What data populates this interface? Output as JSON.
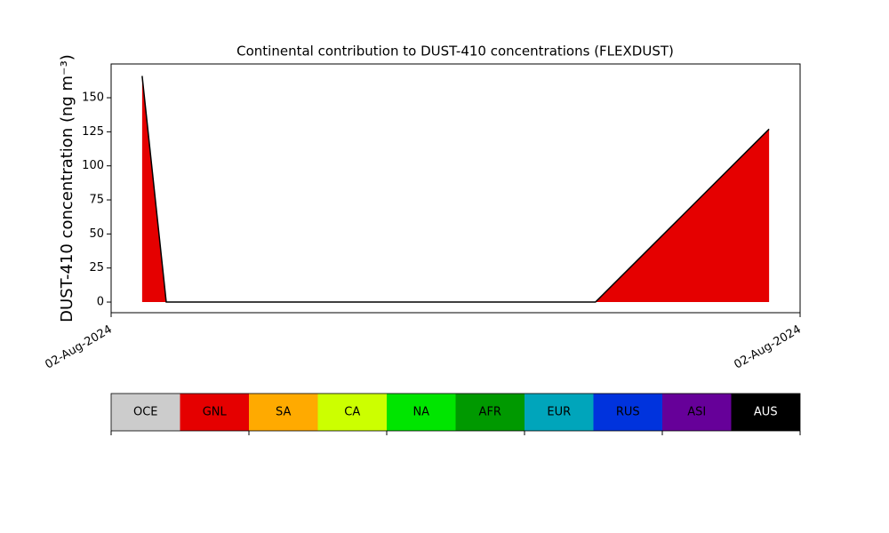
{
  "chart_data": {
    "type": "area",
    "title": "Continental contribution to DUST-410 concentrations (FLEXDUST)",
    "ylabel": "DUST-410 concentration (ng m⁻³)",
    "x": [
      0.045,
      0.08,
      0.684,
      0.703,
      0.955
    ],
    "xlim": [
      0,
      1
    ],
    "xticks": [
      {
        "value": 0,
        "label": "02-Aug-2024"
      },
      {
        "value": 1,
        "label": "02-Aug-2024"
      }
    ],
    "series": [
      {
        "name": "GNL",
        "color": "#e50000",
        "values": [
          166,
          0,
          0,
          0,
          127
        ]
      }
    ],
    "line_color": "#000000",
    "ylim": [
      -7.8,
      174.8
    ],
    "yticks": [
      0,
      25,
      50,
      75,
      100,
      125,
      150
    ],
    "regions": [
      {
        "name": "OCE",
        "color": "#cccccc"
      },
      {
        "name": "GNL",
        "color": "#e50000"
      },
      {
        "name": "SA",
        "color": "#ffaa00"
      },
      {
        "name": "CA",
        "color": "#ccff00"
      },
      {
        "name": "NA",
        "color": "#00e500"
      },
      {
        "name": "AFR",
        "color": "#009900"
      },
      {
        "name": "EUR",
        "color": "#00a5bb"
      },
      {
        "name": "RUS",
        "color": "#0033dd"
      },
      {
        "name": "ASI",
        "color": "#660099"
      },
      {
        "name": "AUS",
        "color": "#000000"
      }
    ]
  }
}
